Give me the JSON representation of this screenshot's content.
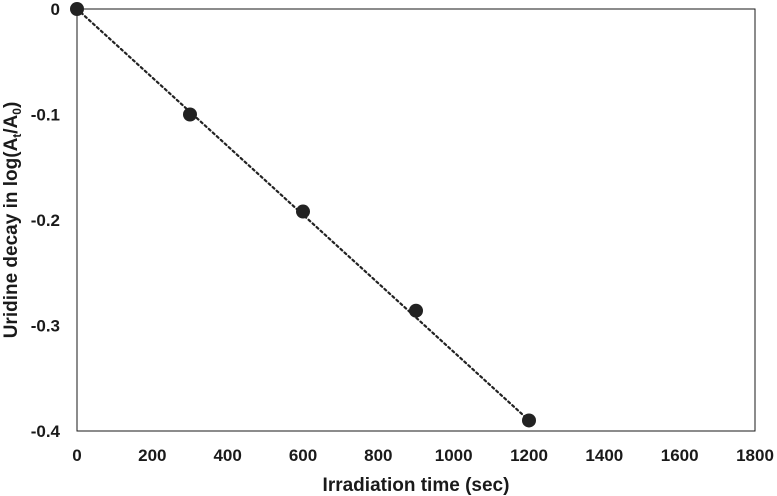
{
  "chart_data": {
    "type": "scatter",
    "title": "",
    "xlabel": "Irradiation time (sec)",
    "ylabel": {
      "main": "Uridine decay in log(A",
      "sub1": "t",
      "mid": "/A",
      "sub2": "0",
      "end": ")"
    },
    "xlim": [
      0,
      1800
    ],
    "ylim": [
      -0.4,
      0
    ],
    "x_ticks": [
      0,
      200,
      400,
      600,
      800,
      1000,
      1200,
      1400,
      1600,
      1800
    ],
    "x_tick_labels": [
      "0",
      "200",
      "400",
      "600",
      "800",
      "1000",
      "1200",
      "1400",
      "1600",
      "1800"
    ],
    "y_ticks": [
      0,
      -0.1,
      -0.2,
      -0.3,
      -0.4
    ],
    "y_tick_labels": [
      "0",
      "-0.1",
      "-0.2",
      "-0.3",
      "-0.4"
    ],
    "grid": false,
    "legend": "none",
    "series": [
      {
        "x": [
          0,
          300,
          600,
          900,
          1200
        ],
        "y": [
          0,
          -0.1,
          -0.192,
          -0.286,
          -0.39
        ],
        "marker_color": "#222222"
      }
    ],
    "trendline": {
      "style": "dotted",
      "color": "#222222",
      "x": [
        0,
        1200
      ],
      "y": [
        0,
        -0.39
      ]
    }
  }
}
